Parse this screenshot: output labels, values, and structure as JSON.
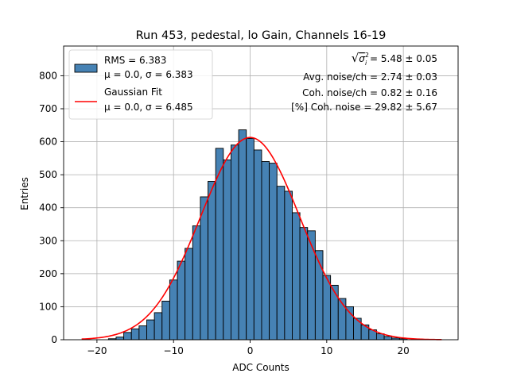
{
  "chart_data": {
    "type": "bar",
    "title": "Run 453, pedestal, lo Gain, Channels 16-19",
    "xlabel": "ADC Counts",
    "ylabel": "Entries",
    "xlim": [
      -24.35,
      27.15
    ],
    "ylim": [
      0,
      890
    ],
    "xticks": [
      -20,
      -10,
      0,
      10,
      20
    ],
    "yticks": [
      0,
      100,
      200,
      300,
      400,
      500,
      600,
      700,
      800
    ],
    "xtick_labels": [
      "−20",
      "−10",
      "0",
      "10",
      "20"
    ],
    "ytick_labels": [
      "0",
      "100",
      "200",
      "300",
      "400",
      "500",
      "600",
      "700",
      "800"
    ],
    "grid": true,
    "legend_position": "top-left",
    "bin_width": 1,
    "bins": [
      {
        "x": -18,
        "count": 3
      },
      {
        "x": -17,
        "count": 8
      },
      {
        "x": -16,
        "count": 22
      },
      {
        "x": -15,
        "count": 33
      },
      {
        "x": -14,
        "count": 42
      },
      {
        "x": -13,
        "count": 60
      },
      {
        "x": -12,
        "count": 82
      },
      {
        "x": -11,
        "count": 117
      },
      {
        "x": -10,
        "count": 181
      },
      {
        "x": -9,
        "count": 238
      },
      {
        "x": -8,
        "count": 277
      },
      {
        "x": -7,
        "count": 345
      },
      {
        "x": -6,
        "count": 433
      },
      {
        "x": -5,
        "count": 480
      },
      {
        "x": -4,
        "count": 580
      },
      {
        "x": -3,
        "count": 545
      },
      {
        "x": -2,
        "count": 590
      },
      {
        "x": -1,
        "count": 636
      },
      {
        "x": 0,
        "count": 610
      },
      {
        "x": 1,
        "count": 575
      },
      {
        "x": 2,
        "count": 540
      },
      {
        "x": 3,
        "count": 535
      },
      {
        "x": 4,
        "count": 465
      },
      {
        "x": 5,
        "count": 450
      },
      {
        "x": 6,
        "count": 385
      },
      {
        "x": 7,
        "count": 340
      },
      {
        "x": 8,
        "count": 330
      },
      {
        "x": 9,
        "count": 270
      },
      {
        "x": 10,
        "count": 195
      },
      {
        "x": 11,
        "count": 165
      },
      {
        "x": 12,
        "count": 125
      },
      {
        "x": 13,
        "count": 100
      },
      {
        "x": 14,
        "count": 65
      },
      {
        "x": 15,
        "count": 45
      },
      {
        "x": 16,
        "count": 30
      },
      {
        "x": 17,
        "count": 18
      },
      {
        "x": 18,
        "count": 10
      },
      {
        "x": 19,
        "count": 5
      },
      {
        "x": 20,
        "count": 3
      }
    ],
    "fit": {
      "type": "gaussian",
      "mu": 0.0,
      "sigma": 6.485,
      "amplitude": 613,
      "x_range": [
        -22,
        25
      ]
    },
    "series": [
      {
        "name": "RMS = 6.383",
        "label_line2": "μ = 0.0, σ = 6.383",
        "color": "#4682b4",
        "edge_color": "#000000"
      },
      {
        "name": "Gaussian Fit",
        "label_line2": "μ = 0.0, σ = 6.485",
        "color": "#ff0000"
      }
    ],
    "annotations": [
      {
        "id": "sigma",
        "prefix": "√",
        "var": "σ",
        "sup": "2",
        "sub": "i",
        "value": " = 5.48 ± 0.05"
      },
      {
        "id": "avg",
        "text": "Avg. noise/ch = 2.74 ± 0.03"
      },
      {
        "id": "coh",
        "text": "Coh. noise/ch = 0.82 ± 0.16"
      },
      {
        "id": "pct",
        "text": "[%] Coh. noise = 29.82 ± 5.67"
      }
    ]
  }
}
